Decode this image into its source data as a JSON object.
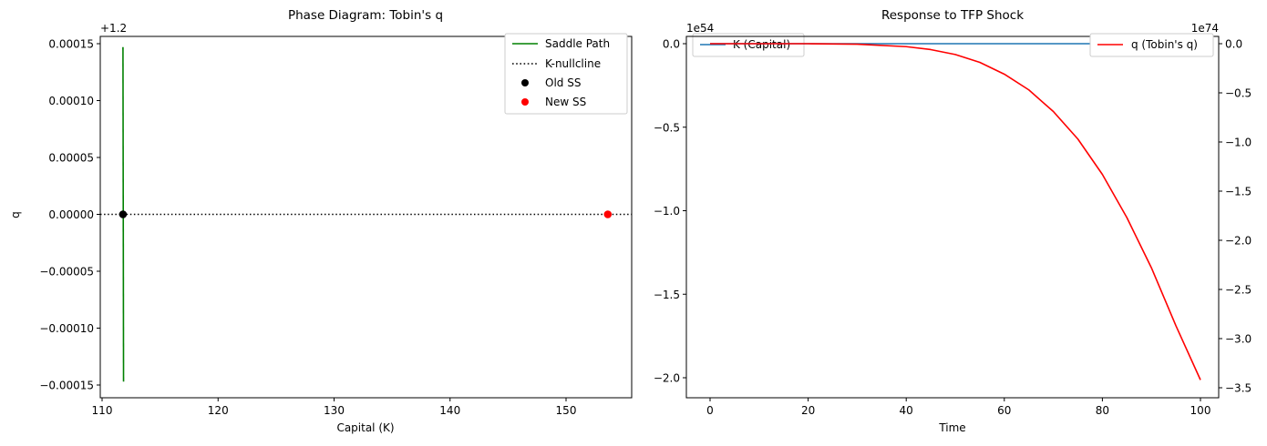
{
  "chart_data": [
    {
      "type": "line",
      "title": "Phase Diagram: Tobin's q",
      "xlabel": "Capital (K)",
      "ylabel": "q",
      "y_offset_label": "+1.2",
      "xlim": [
        109.8,
        155.6
      ],
      "ylim": [
        -0.00016,
        0.00016
      ],
      "x_ticks": [
        "110",
        "120",
        "130",
        "140",
        "150"
      ],
      "y_ticks": [
        "0.00015",
        "0.00010",
        "0.00005",
        "0.00000",
        "−0.00005",
        "−0.00010",
        "−0.00015"
      ],
      "legend_position": "upper right",
      "series": [
        {
          "name": "Saddle Path",
          "style": "solid",
          "color": "#008000",
          "x": [
            111.8,
            111.85
          ],
          "y": [
            0.000147,
            -0.000147
          ]
        },
        {
          "name": "K-nullcline",
          "style": "dotted",
          "color": "#000000",
          "y_const": 0.0
        },
        {
          "name": "Old SS",
          "style": "marker",
          "color": "#000000",
          "x": [
            111.8
          ],
          "y": [
            0.0
          ]
        },
        {
          "name": "New SS",
          "style": "marker",
          "color": "#ff0000",
          "x": [
            153.6
          ],
          "y": [
            0.0
          ]
        }
      ]
    },
    {
      "type": "line",
      "title": "Response to TFP Shock",
      "xlabel": "Time",
      "ylabel_left": "",
      "ylabel_right": "",
      "left_offset_label": "1e54",
      "right_offset_label": "1e74",
      "xlim": [
        -5,
        105
      ],
      "x_ticks": [
        "0",
        "20",
        "40",
        "60",
        "80",
        "100"
      ],
      "y_left_ticks": [
        "0.0",
        "−0.5",
        "−1.0",
        "−1.5",
        "−2.0"
      ],
      "y_right_ticks": [
        "0.0",
        "−0.5",
        "−1.0",
        "−1.5",
        "−2.0",
        "−2.5",
        "−3.0",
        "−3.5"
      ],
      "ylim_left": [
        -2.29,
        0.11
      ],
      "ylim_right": [
        -3.62,
        0.17
      ],
      "legend_left": "upper left",
      "legend_right": "upper right",
      "series": [
        {
          "name": "K (Capital)",
          "axis": "left",
          "color": "#1f77b4",
          "scale": "1e54",
          "x": [
            0,
            10,
            20,
            30,
            40,
            50,
            60,
            70,
            80,
            90,
            100
          ],
          "y": [
            0,
            0,
            0,
            0,
            0,
            0,
            0,
            0,
            0,
            0,
            0
          ]
        },
        {
          "name": "q (Tobin's q)",
          "axis": "right",
          "color": "#ff0000",
          "scale": "1e74",
          "x": [
            0,
            10,
            20,
            30,
            40,
            45,
            50,
            55,
            60,
            65,
            70,
            75,
            80,
            85,
            90,
            95,
            100
          ],
          "y": [
            0,
            0,
            0,
            -0.005,
            -0.03,
            -0.06,
            -0.11,
            -0.19,
            -0.31,
            -0.47,
            -0.69,
            -0.97,
            -1.33,
            -1.77,
            -2.28,
            -2.87,
            -3.42
          ]
        }
      ]
    }
  ],
  "legend_left": {
    "items": [
      "Saddle Path",
      "K-nullcline",
      "Old SS",
      "New SS"
    ]
  },
  "legend_right_k": "K (Capital)",
  "legend_right_q": "q (Tobin's q)"
}
